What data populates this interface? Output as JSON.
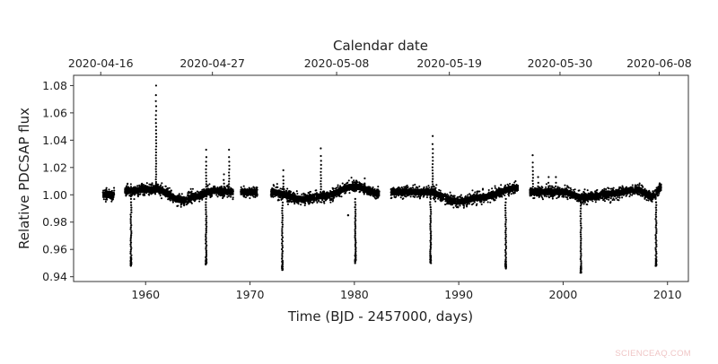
{
  "chart_data": {
    "type": "scatter",
    "title": "",
    "xlabel": "Time (BJD - 2457000, days)",
    "ylabel": "Relative PDCSAP flux",
    "top_xlabel": "Calendar date",
    "xlim": [
      1953.1,
      2012.0
    ],
    "ylim": [
      0.9365,
      1.0875
    ],
    "grid": false,
    "legend": null,
    "x_ticks": [
      1960,
      1970,
      1980,
      1990,
      2000,
      2010
    ],
    "x_tick_labels": [
      "1960",
      "1970",
      "1980",
      "1990",
      "2000",
      "2010"
    ],
    "y_ticks": [
      0.94,
      0.96,
      0.98,
      1.0,
      1.02,
      1.04,
      1.06,
      1.08
    ],
    "y_tick_labels": [
      "0.94",
      "0.96",
      "0.98",
      "1.00",
      "1.02",
      "1.04",
      "1.06",
      "1.08"
    ],
    "top_x_ticks": [
      1955.7,
      1966.4,
      1978.3,
      1989.1,
      1999.7,
      2009.2
    ],
    "top_x_tick_labels": [
      "2020-04-16",
      "2020-04-27",
      "2020-05-08",
      "2020-05-19",
      "2020-05-30",
      "2020-06-08"
    ],
    "marker_color": "#000000",
    "segments": [
      {
        "start": 1955.9,
        "end": 1957.0,
        "baseline": 1.0,
        "trend": []
      },
      {
        "start": 1958.0,
        "end": 1968.4,
        "baseline": 1.002,
        "trend": [
          [
            1958.0,
            1.003
          ],
          [
            1961.0,
            1.004
          ],
          [
            1963.5,
            0.996
          ],
          [
            1965.0,
            0.999
          ],
          [
            1966.5,
            1.003
          ],
          [
            1968.4,
            1.002
          ]
        ]
      },
      {
        "start": 1969.1,
        "end": 1970.7,
        "baseline": 1.002,
        "trend": []
      },
      {
        "start": 1972.0,
        "end": 1982.4,
        "baseline": 1.001,
        "trend": [
          [
            1972.0,
            1.002
          ],
          [
            1975.0,
            0.997
          ],
          [
            1977.0,
            0.999
          ],
          [
            1980.0,
            1.006
          ],
          [
            1982.4,
            1.001
          ]
        ]
      },
      {
        "start": 1983.5,
        "end": 1995.7,
        "baseline": 1.001,
        "trend": [
          [
            1983.5,
            1.002
          ],
          [
            1987.0,
            1.002
          ],
          [
            1990.0,
            0.995
          ],
          [
            1992.0,
            0.998
          ],
          [
            1995.7,
            1.005
          ]
        ]
      },
      {
        "start": 1996.8,
        "end": 2009.4,
        "baseline": 1.001,
        "trend": [
          [
            1996.8,
            1.002
          ],
          [
            2000.0,
            1.002
          ],
          [
            2002.0,
            0.998
          ],
          [
            2005.0,
            1.001
          ],
          [
            2007.0,
            1.004
          ],
          [
            2008.5,
            0.999
          ],
          [
            2009.4,
            1.005
          ]
        ]
      }
    ],
    "transits": [
      {
        "t": 1958.6,
        "min_flux": 0.948
      },
      {
        "t": 1965.8,
        "min_flux": 0.949
      },
      {
        "t": 1973.1,
        "min_flux": 0.945
      },
      {
        "t": 1980.1,
        "min_flux": 0.95
      },
      {
        "t": 1987.3,
        "min_flux": 0.95
      },
      {
        "t": 1994.5,
        "min_flux": 0.946
      },
      {
        "t": 2001.7,
        "min_flux": 0.943
      },
      {
        "t": 2008.9,
        "min_flux": 0.948
      }
    ],
    "flares": [
      {
        "t": 1961.0,
        "peak_flux": 1.08
      },
      {
        "t": 1965.8,
        "peak_flux": 1.033
      },
      {
        "t": 1968.0,
        "peak_flux": 1.033
      },
      {
        "t": 1967.5,
        "peak_flux": 1.015
      },
      {
        "t": 1973.2,
        "peak_flux": 1.018
      },
      {
        "t": 1976.8,
        "peak_flux": 1.034
      },
      {
        "t": 1981.0,
        "peak_flux": 1.012
      },
      {
        "t": 1987.5,
        "peak_flux": 1.043
      },
      {
        "t": 1997.1,
        "peak_flux": 1.029
      },
      {
        "t": 1997.6,
        "peak_flux": 1.013
      },
      {
        "t": 1998.6,
        "peak_flux": 1.013
      },
      {
        "t": 1999.3,
        "peak_flux": 1.013
      }
    ],
    "outliers": [
      {
        "t": 1979.4,
        "flux": 0.985
      }
    ]
  },
  "watermark": "SCIENCEAQ.COM"
}
